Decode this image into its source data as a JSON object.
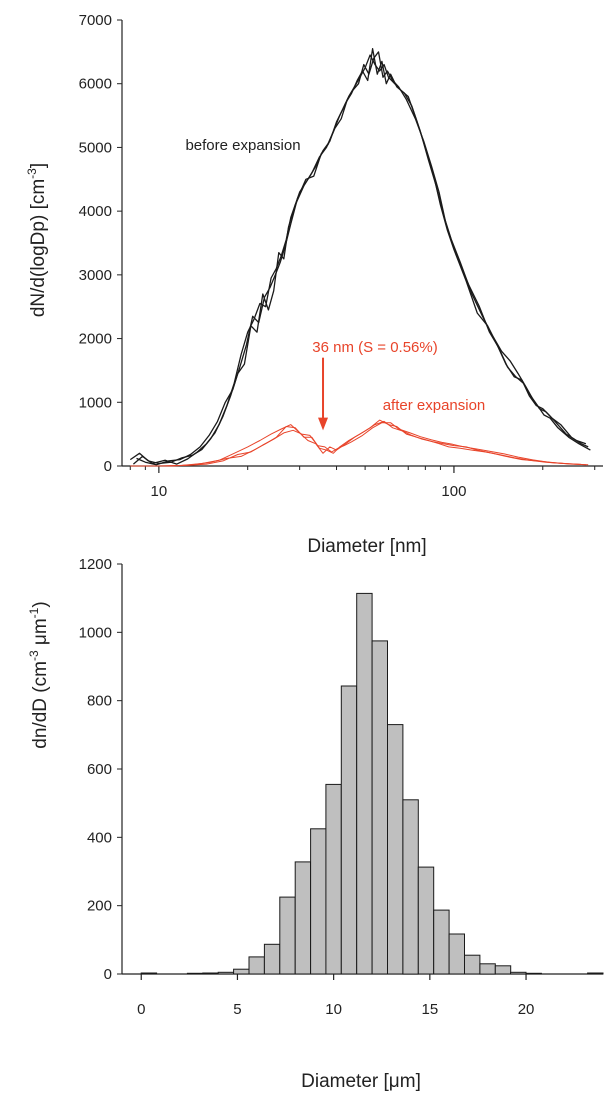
{
  "colors": {
    "before": "#1a1a1a",
    "after": "#e8442a",
    "bar_fill": "#bfbfbf",
    "bar_stroke": "#1a1a1a"
  },
  "chart_data": [
    {
      "type": "line",
      "xlabel": "Diameter [nm]",
      "ylabel": "dN/d(logDp) [cm",
      "ylabel_sup": "-3",
      "ylabel_end": "]",
      "xscale": "log",
      "xlim": [
        7.5,
        320
      ],
      "ylim": [
        0,
        7000
      ],
      "yticks": [
        "0",
        "1000",
        "2000",
        "3000",
        "4000",
        "5000",
        "6000",
        "7000"
      ],
      "xticks": [
        "10",
        "100"
      ],
      "grid": false,
      "annotations": {
        "before": "before expansion",
        "after": "after expansion",
        "arrow": "36 nm (S = 0.56%)",
        "arrow_x": 36
      },
      "series": [
        {
          "group": "before",
          "x": [
            8.0,
            8.6,
            9.2,
            10.0,
            11.0,
            12.0,
            13.0,
            14.0,
            15.0,
            16.0,
            17.0,
            18.0,
            19.0,
            20.0,
            21.0,
            22.0,
            23.0,
            24.0,
            25.0,
            26.0,
            27.0,
            28.0,
            30.0,
            32.0,
            34.0,
            36.0,
            38.0,
            40.0,
            42.0,
            44.0,
            46.0,
            48.0,
            50.0,
            52.0,
            54.0,
            56.0,
            58.0,
            60.0,
            63.0,
            66.0,
            70.0,
            75.0,
            80.0,
            85.0,
            90.0,
            95.0,
            100.0,
            110.0,
            120.0,
            130.0,
            140.0,
            150.0,
            160.0,
            170.0,
            180.0,
            190.0,
            200.0,
            210.0,
            220.0,
            240.0,
            260.0,
            280.0
          ],
          "values": [
            100,
            200,
            80,
            40,
            60,
            130,
            170,
            260,
            430,
            650,
            950,
            1300,
            1750,
            2100,
            2300,
            2550,
            2500,
            2950,
            3100,
            3300,
            3550,
            3900,
            4300,
            4500,
            4700,
            4950,
            5100,
            5400,
            5600,
            5800,
            5950,
            6100,
            6250,
            6450,
            6300,
            6200,
            6300,
            6100,
            6000,
            5900,
            5800,
            5400,
            5000,
            4600,
            4100,
            3700,
            3400,
            2900,
            2400,
            2200,
            1900,
            1600,
            1400,
            1350,
            1100,
            950,
            900,
            800,
            700,
            500,
            400,
            350
          ]
        },
        {
          "group": "before",
          "x": [
            8.2,
            8.8,
            9.5,
            10.5,
            11.5,
            12.5,
            13.5,
            14.5,
            15.5,
            16.5,
            17.5,
            18.5,
            19.5,
            20.5,
            21.5,
            22.5,
            23.5,
            24.5,
            25.5,
            26.5,
            27.5,
            29.0,
            31.0,
            33.0,
            35.0,
            37.0,
            39.0,
            41.0,
            43.0,
            45.0,
            47.0,
            49.0,
            51.0,
            53.0,
            55.0,
            57.0,
            59.0,
            61.0,
            64.0,
            68.0,
            72.0,
            77.0,
            82.0,
            87.0,
            92.0,
            98.0,
            105.0,
            115.0,
            125.0,
            135.0,
            145.0,
            155.0,
            165.0,
            175.0,
            185.0,
            195.0,
            205.0,
            215.0,
            230.0,
            250.0,
            270.0,
            285.0
          ],
          "values": [
            30,
            150,
            40,
            90,
            30,
            110,
            220,
            350,
            520,
            780,
            1100,
            1450,
            1600,
            2200,
            2100,
            2700,
            2450,
            2750,
            3350,
            3250,
            3750,
            4100,
            4400,
            4600,
            4850,
            5000,
            5250,
            5500,
            5700,
            5850,
            6050,
            6200,
            6050,
            6550,
            6150,
            6350,
            6000,
            6150,
            5950,
            5850,
            5650,
            5250,
            4800,
            4400,
            3950,
            3550,
            3200,
            2700,
            2350,
            2050,
            1800,
            1650,
            1450,
            1250,
            1050,
            900,
            850,
            750,
            650,
            450,
            350,
            300
          ]
        },
        {
          "group": "before",
          "x": [
            8.4,
            9.0,
            9.8,
            10.8,
            11.8,
            12.8,
            13.8,
            14.8,
            15.8,
            16.8,
            17.8,
            18.8,
            19.8,
            20.8,
            21.8,
            22.8,
            23.8,
            24.8,
            25.8,
            26.8,
            28.0,
            29.5,
            31.5,
            33.5,
            35.5,
            37.5,
            39.5,
            41.5,
            43.5,
            45.5,
            47.5,
            49.5,
            51.5,
            53.5,
            55.5,
            57.5,
            59.5,
            62.0,
            65.0,
            69.0,
            74.0,
            79.0,
            84.0,
            89.0,
            94.0,
            102.0,
            112.0,
            122.0,
            132.0,
            142.0,
            152.0,
            162.0,
            172.0,
            182.0,
            192.0,
            202.0,
            212.0,
            225.0,
            245.0,
            265.0,
            290.0
          ],
          "values": [
            120,
            60,
            20,
            80,
            100,
            180,
            300,
            480,
            700,
            1000,
            1200,
            1550,
            1900,
            2350,
            2250,
            2650,
            2800,
            3000,
            3200,
            3450,
            3800,
            4200,
            4500,
            4550,
            4900,
            5050,
            5300,
            5450,
            5750,
            5900,
            6000,
            6300,
            6150,
            6400,
            6500,
            6100,
            6200,
            6050,
            5950,
            5750,
            5450,
            5100,
            4700,
            4300,
            3800,
            3300,
            2850,
            2500,
            2100,
            1850,
            1550,
            1400,
            1300,
            1100,
            950,
            800,
            750,
            600,
            450,
            350,
            250
          ]
        },
        {
          "group": "after",
          "x": [
            8.0,
            10.0,
            12.0,
            14.0,
            16.0,
            18.0,
            20.0,
            22.0,
            24.0,
            26.0,
            28.0,
            30.0,
            32.0,
            34.0,
            36.0,
            38.0,
            40.0,
            43.0,
            46.0,
            50.0,
            54.0,
            58.0,
            62.0,
            67.0,
            72.0,
            78.0,
            85.0,
            92.0,
            100.0,
            110.0,
            120.0,
            135.0,
            150.0,
            170.0,
            190.0,
            220.0,
            250.0,
            285.0
          ],
          "values": [
            0,
            0,
            10,
            40,
            90,
            200,
            300,
            400,
            500,
            580,
            650,
            520,
            400,
            350,
            200,
            300,
            250,
            350,
            450,
            550,
            650,
            700,
            600,
            550,
            480,
            420,
            380,
            350,
            320,
            300,
            250,
            200,
            150,
            100,
            80,
            50,
            30,
            20
          ]
        },
        {
          "group": "after",
          "x": [
            9.0,
            11.0,
            13.0,
            15.0,
            17.0,
            19.0,
            21.0,
            23.0,
            25.0,
            27.0,
            29.0,
            31.0,
            33.0,
            35.0,
            37.0,
            39.0,
            41.0,
            44.0,
            48.0,
            52.0,
            56.0,
            60.0,
            64.0,
            69.0,
            75.0,
            82.0,
            89.0,
            96.0,
            105.0,
            115.0,
            128.0,
            142.0,
            160.0,
            180.0,
            205.0,
            235.0,
            270.0
          ],
          "values": [
            0,
            0,
            20,
            60,
            120,
            150,
            250,
            350,
            450,
            620,
            600,
            450,
            450,
            280,
            250,
            200,
            300,
            400,
            500,
            600,
            720,
            650,
            620,
            500,
            450,
            400,
            350,
            300,
            280,
            250,
            220,
            180,
            130,
            90,
            60,
            40,
            25
          ]
        },
        {
          "group": "after",
          "x": [
            10.5,
            12.5,
            14.5,
            16.5,
            18.5,
            20.5,
            22.5,
            24.5,
            26.5,
            28.5,
            30.5,
            32.5,
            34.5,
            36.5,
            38.5,
            40.5,
            42.5,
            45.0,
            49.0,
            53.0,
            57.0,
            61.0,
            65.0,
            71.0,
            77.0,
            84.0,
            91.0,
            99.0,
            108.0,
            118.0,
            132.0,
            148.0,
            165.0,
            185.0,
            212.0,
            245.0,
            280.0
          ],
          "values": [
            0,
            10,
            30,
            80,
            180,
            220,
            330,
            420,
            520,
            560,
            500,
            480,
            320,
            300,
            220,
            280,
            320,
            380,
            480,
            600,
            680,
            680,
            580,
            520,
            460,
            410,
            370,
            340,
            300,
            270,
            230,
            190,
            140,
            95,
            55,
            35,
            20
          ]
        }
      ]
    },
    {
      "type": "bar",
      "xlabel": "Diameter [μm]",
      "ylabel": "dn/dD (cm",
      "ylabel_sup1": "-3",
      "ylabel_mid": " μm",
      "ylabel_sup2": "-1",
      "ylabel_end": ")",
      "xlim": [
        -1,
        24
      ],
      "ylim": [
        0,
        1200
      ],
      "xticks": [
        "0",
        "5",
        "10",
        "15",
        "20"
      ],
      "yticks": [
        "0",
        "200",
        "400",
        "600",
        "800",
        "1000",
        "1200"
      ],
      "grid": false,
      "bin_width": 0.8,
      "bins": [
        0.0,
        2.4,
        3.2,
        4.0,
        4.8,
        5.6,
        6.4,
        7.2,
        8.0,
        8.8,
        9.6,
        10.4,
        11.2,
        12.0,
        12.8,
        13.6,
        14.4,
        15.2,
        16.0,
        16.8,
        17.6,
        18.4,
        19.2,
        20.0,
        23.2
      ],
      "values": [
        3,
        2,
        3,
        5,
        14,
        50,
        87,
        225,
        328,
        425,
        555,
        843,
        1114,
        975,
        730,
        510,
        313,
        187,
        117,
        55,
        30,
        24,
        5,
        2,
        3
      ]
    }
  ]
}
